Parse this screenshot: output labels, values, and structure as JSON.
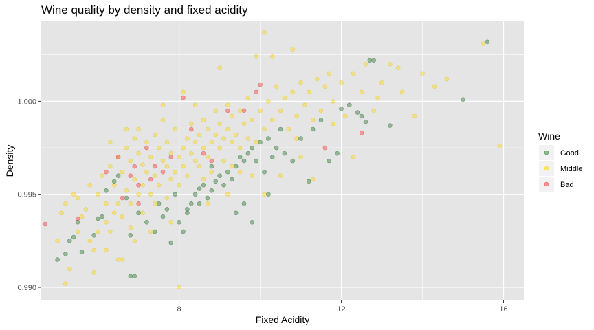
{
  "chart_data": {
    "type": "scatter",
    "title": "Wine quality by density and fixed acidity",
    "xlabel": "Fixed Acidity",
    "ylabel": "Density",
    "xlim": [
      4.6,
      16.5
    ],
    "ylim": [
      0.9893,
      1.0043
    ],
    "xticks": [
      8,
      12,
      16
    ],
    "xtick_labels": [
      "8",
      "12",
      "16"
    ],
    "yticks": [
      0.99,
      0.995,
      1.0
    ],
    "ytick_labels": [
      "0.990",
      "0.995",
      "1.000"
    ],
    "grid": true,
    "legend": {
      "title": "Wine",
      "position": "right",
      "entries": [
        "Good",
        "Middle",
        "Bad"
      ]
    },
    "colors": {
      "Good": "#2e7d32",
      "Middle": "#ffd700",
      "Bad": "#ff3b3b",
      "panel": "#e5e5e5",
      "grid": "#ffffff"
    },
    "series": [
      {
        "name": "Good",
        "points": [
          [
            5.0,
            0.9915
          ],
          [
            5.2,
            0.9918
          ],
          [
            5.3,
            0.9925
          ],
          [
            5.4,
            0.9927
          ],
          [
            5.5,
            0.9935
          ],
          [
            5.6,
            0.9919
          ],
          [
            5.9,
            0.9928
          ],
          [
            6.0,
            0.9937
          ],
          [
            6.1,
            0.9938
          ],
          [
            6.2,
            0.9952
          ],
          [
            6.4,
            0.9957
          ],
          [
            6.5,
            0.996
          ],
          [
            6.7,
            0.9948
          ],
          [
            6.8,
            0.9928
          ],
          [
            6.9,
            0.9906
          ],
          [
            6.8,
            0.9906
          ],
          [
            7.0,
            0.994
          ],
          [
            7.2,
            0.9935
          ],
          [
            7.4,
            0.993
          ],
          [
            7.5,
            0.9945
          ],
          [
            7.6,
            0.9938
          ],
          [
            7.7,
            0.9942
          ],
          [
            7.8,
            0.9924
          ],
          [
            8.0,
            0.9935
          ],
          [
            8.1,
            0.993
          ],
          [
            8.2,
            0.994
          ],
          [
            8.3,
            0.9945
          ],
          [
            8.4,
            0.995
          ],
          [
            8.5,
            0.9953
          ],
          [
            8.6,
            0.9955
          ],
          [
            8.7,
            0.9948
          ],
          [
            8.8,
            0.9952
          ],
          [
            8.9,
            0.9957
          ],
          [
            9.0,
            0.996
          ],
          [
            9.1,
            0.9955
          ],
          [
            9.2,
            0.9962
          ],
          [
            9.3,
            0.9958
          ],
          [
            9.4,
            0.9965
          ],
          [
            9.5,
            0.997
          ],
          [
            9.6,
            0.9968
          ],
          [
            9.7,
            0.9972
          ],
          [
            9.8,
            0.9975
          ],
          [
            9.9,
            0.9968
          ],
          [
            10.0,
            0.9978
          ],
          [
            10.1,
            0.9962
          ],
          [
            10.2,
            0.998
          ],
          [
            10.3,
            0.997
          ],
          [
            10.4,
            0.9975
          ],
          [
            10.5,
            0.9985
          ],
          [
            10.6,
            0.9972
          ],
          [
            10.8,
            0.9968
          ],
          [
            11.0,
            0.998
          ],
          [
            11.2,
            0.9957
          ],
          [
            11.3,
            0.9985
          ],
          [
            11.5,
            0.999
          ],
          [
            11.7,
            0.9968
          ],
          [
            11.9,
            0.9972
          ],
          [
            12.0,
            0.9996
          ],
          [
            12.2,
            0.9998
          ],
          [
            12.4,
            0.9994
          ],
          [
            12.5,
            0.9992
          ],
          [
            12.6,
            0.9989
          ],
          [
            12.7,
            1.0022
          ],
          [
            12.8,
            1.0022
          ],
          [
            13.2,
            0.9987
          ],
          [
            15.0,
            1.0001
          ],
          [
            15.6,
            1.0032
          ],
          [
            8.5,
            0.9945
          ],
          [
            9.4,
            0.994
          ],
          [
            9.8,
            0.9935
          ],
          [
            10.2,
            0.995
          ],
          [
            8.2,
            0.9942
          ],
          [
            7.9,
            0.995
          ],
          [
            8.8,
            0.9965
          ],
          [
            9.6,
            0.9945
          ]
        ]
      },
      {
        "name": "Middle",
        "points": [
          [
            5.0,
            0.9925
          ],
          [
            5.1,
            0.994
          ],
          [
            5.2,
            0.9945
          ],
          [
            5.3,
            0.991
          ],
          [
            5.4,
            0.995
          ],
          [
            5.5,
            0.9948
          ],
          [
            5.6,
            0.9938
          ],
          [
            5.7,
            0.9942
          ],
          [
            5.8,
            0.9955
          ],
          [
            5.9,
            0.992
          ],
          [
            6.0,
            0.993
          ],
          [
            6.0,
            0.995
          ],
          [
            6.1,
            0.996
          ],
          [
            6.2,
            0.9945
          ],
          [
            6.2,
            0.9935
          ],
          [
            6.3,
            0.9965
          ],
          [
            6.3,
            0.993
          ],
          [
            6.4,
            0.9955
          ],
          [
            6.4,
            0.994
          ],
          [
            6.5,
            0.997
          ],
          [
            6.5,
            0.9945
          ],
          [
            6.6,
            0.9962
          ],
          [
            6.6,
            0.9938
          ],
          [
            6.7,
            0.9975
          ],
          [
            6.7,
            0.9952
          ],
          [
            6.8,
            0.9968
          ],
          [
            6.8,
            0.9945
          ],
          [
            6.9,
            0.998
          ],
          [
            6.9,
            0.9958
          ],
          [
            7.0,
            0.9972
          ],
          [
            7.0,
            0.995
          ],
          [
            7.0,
            0.9985
          ],
          [
            7.1,
            0.9966
          ],
          [
            7.1,
            0.9955
          ],
          [
            7.2,
            0.9978
          ],
          [
            7.2,
            0.9962
          ],
          [
            7.3,
            0.997
          ],
          [
            7.3,
            0.995
          ],
          [
            7.4,
            0.9982
          ],
          [
            7.4,
            0.996
          ],
          [
            7.5,
            0.9975
          ],
          [
            7.5,
            0.9955
          ],
          [
            7.6,
            0.9968
          ],
          [
            7.6,
            0.999
          ],
          [
            7.7,
            0.9965
          ],
          [
            7.7,
            0.9978
          ],
          [
            7.8,
            0.9958
          ],
          [
            7.8,
            0.9972
          ],
          [
            7.9,
            0.9962
          ],
          [
            7.9,
            0.9985
          ],
          [
            8.0,
            0.997
          ],
          [
            8.0,
            0.9955
          ],
          [
            8.1,
            0.9975
          ],
          [
            8.1,
            0.9965
          ],
          [
            8.2,
            0.998
          ],
          [
            8.2,
            0.996
          ],
          [
            8.3,
            0.9972
          ],
          [
            8.3,
            0.9988
          ],
          [
            8.4,
            0.9968
          ],
          [
            8.4,
            0.9978
          ],
          [
            8.5,
            0.9982
          ],
          [
            8.5,
            0.9965
          ],
          [
            8.6,
            0.9975
          ],
          [
            8.6,
            0.999
          ],
          [
            8.7,
            0.997
          ],
          [
            8.7,
            0.9985
          ],
          [
            8.8,
            0.9978
          ],
          [
            8.8,
            0.9962
          ],
          [
            8.9,
            0.9982
          ],
          [
            8.9,
            0.9995
          ],
          [
            9.0,
            0.9975
          ],
          [
            9.0,
            0.9988
          ],
          [
            9.1,
            0.998
          ],
          [
            9.1,
            0.9968
          ],
          [
            9.2,
            0.9985
          ],
          [
            9.2,
            0.9998
          ],
          [
            9.3,
            0.9978
          ],
          [
            9.3,
            0.9992
          ],
          [
            9.4,
            0.9982
          ],
          [
            9.5,
            0.9995
          ],
          [
            9.5,
            0.9975
          ],
          [
            9.6,
            0.9988
          ],
          [
            9.7,
            0.998
          ],
          [
            9.7,
            1.0002
          ],
          [
            9.8,
            0.999
          ],
          [
            9.9,
            1.0024
          ],
          [
            9.9,
            0.9978
          ],
          [
            10.0,
            0.9995
          ],
          [
            10.1,
            1.0037
          ],
          [
            10.1,
            0.9985
          ],
          [
            10.2,
            1.0
          ],
          [
            10.3,
            0.999
          ],
          [
            10.4,
            1.0008
          ],
          [
            10.5,
            0.9995
          ],
          [
            10.6,
            1.0002
          ],
          [
            10.7,
            0.9985
          ],
          [
            10.8,
            1.0005
          ],
          [
            10.9,
            0.9992
          ],
          [
            11.0,
            1.001
          ],
          [
            11.1,
            0.9998
          ],
          [
            11.2,
            1.0005
          ],
          [
            11.3,
            0.999
          ],
          [
            11.4,
            1.0012
          ],
          [
            11.5,
            0.9995
          ],
          [
            11.6,
            1.0008
          ],
          [
            11.8,
            1.0
          ],
          [
            12.0,
            1.001
          ],
          [
            12.1,
            0.9992
          ],
          [
            12.3,
            1.0015
          ],
          [
            12.5,
            1.0005
          ],
          [
            12.6,
            1.002
          ],
          [
            12.8,
            0.9995
          ],
          [
            13.0,
            1.001
          ],
          [
            13.2,
            1.002
          ],
          [
            13.5,
            1.0005
          ],
          [
            13.8,
            0.9992
          ],
          [
            14.0,
            1.0015
          ],
          [
            14.3,
            1.0008
          ],
          [
            15.5,
            1.0031
          ],
          [
            15.9,
            0.9976
          ],
          [
            5.5,
            0.993
          ],
          [
            5.8,
            0.9925
          ],
          [
            6.2,
            0.992
          ],
          [
            6.5,
            0.9915
          ],
          [
            6.9,
            0.9925
          ],
          [
            7.3,
            0.993
          ],
          [
            7.8,
            0.9935
          ],
          [
            8.0,
            0.99
          ],
          [
            6.8,
            0.9932
          ],
          [
            9.3,
            0.9965
          ],
          [
            9.8,
            0.996
          ],
          [
            10.5,
            0.996
          ],
          [
            11.0,
            0.997
          ],
          [
            11.3,
            0.9958
          ],
          [
            12.3,
            0.997
          ],
          [
            10.1,
            0.995
          ],
          [
            9.2,
            0.995
          ],
          [
            8.7,
            0.9945
          ],
          [
            6.7,
            0.9985
          ],
          [
            6.3,
            0.9978
          ],
          [
            7.6,
            0.9998
          ],
          [
            8.1,
            1.0005
          ],
          [
            8.4,
            0.9998
          ],
          [
            9.0,
            1.0018
          ],
          [
            10.3,
            1.0024
          ],
          [
            10.8,
            1.0028
          ],
          [
            11.7,
            1.0015
          ],
          [
            5.2,
            0.9902
          ],
          [
            5.9,
            0.9908
          ],
          [
            6.6,
            0.9915
          ],
          [
            7.1,
            0.994
          ],
          [
            7.4,
            0.9945
          ],
          [
            7.7,
            0.9948
          ],
          [
            8.6,
            0.9958
          ],
          [
            9.5,
            0.9962
          ],
          [
            10.9,
            0.998
          ],
          [
            11.8,
            0.9988
          ],
          [
            12.9,
            1.0002
          ],
          [
            13.4,
            1.0018
          ],
          [
            14.6,
            1.0012
          ]
        ]
      },
      {
        "name": "Bad",
        "points": [
          [
            4.7,
            0.9934
          ],
          [
            5.5,
            0.9937
          ],
          [
            6.2,
            0.9962
          ],
          [
            6.5,
            0.997
          ],
          [
            6.8,
            0.996
          ],
          [
            6.9,
            0.9965
          ],
          [
            7.0,
            0.9955
          ],
          [
            7.2,
            0.9975
          ],
          [
            7.4,
            0.9965
          ],
          [
            7.6,
            0.9962
          ],
          [
            7.8,
            0.997
          ],
          [
            8.1,
            1.0002
          ],
          [
            8.3,
            0.9985
          ],
          [
            8.6,
            0.9972
          ],
          [
            8.8,
            0.9968
          ],
          [
            9.2,
            0.9995
          ],
          [
            9.6,
            0.9995
          ],
          [
            9.9,
            1.0005
          ],
          [
            10.0,
            1.0009
          ],
          [
            11.6,
            0.9975
          ],
          [
            12.5,
            0.9983
          ],
          [
            6.6,
            0.9948
          ],
          [
            7.0,
            0.9945
          ],
          [
            7.3,
            0.9958
          ]
        ]
      }
    ]
  }
}
